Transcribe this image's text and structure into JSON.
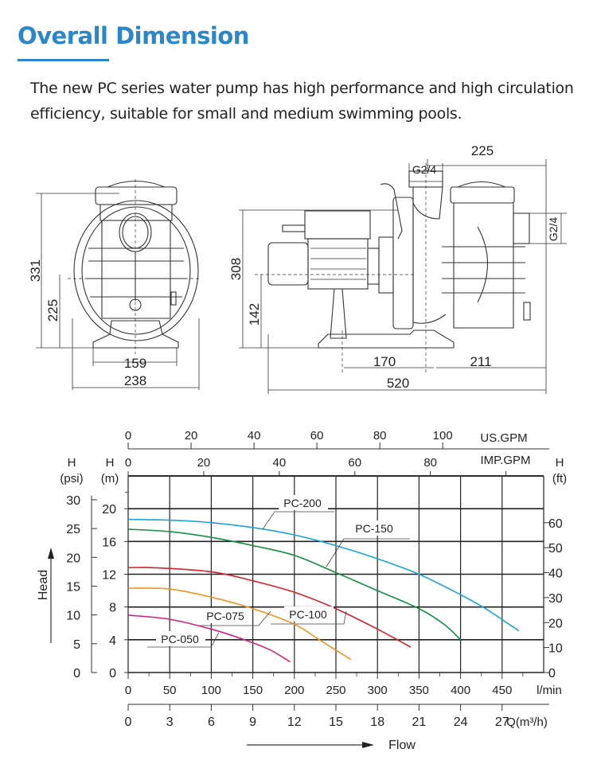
{
  "header": {
    "title": "Overall Dimension",
    "description": "The new PC series water pump has high performance and high circulation efficiency, suitable for small and medium swimming pools."
  },
  "drawing": {
    "front_view": {
      "height_total": "331",
      "height_center": "225",
      "base_inner": "159",
      "base_outer": "238"
    },
    "side_view": {
      "height_total": "308",
      "height_center": "142",
      "base_span": "170",
      "front_to_outlet": "211",
      "length_total": "520",
      "basket_width": "225",
      "outlet_thread": "G2/4",
      "inlet_thread": "G2/4"
    }
  },
  "chart_data": {
    "type": "line",
    "xlabel": "Flow",
    "ylabel": "Head",
    "x_unit": "l/min",
    "y_unit": "(m)",
    "xlim": [
      0,
      500
    ],
    "ylim": [
      0,
      24
    ],
    "grid": true,
    "x_ticks": [
      "0",
      "50",
      "100",
      "150",
      "200",
      "250",
      "300",
      "350",
      "400",
      "450"
    ],
    "y_ticks": [
      "0",
      "4",
      "8",
      "12",
      "16",
      "20"
    ],
    "secondary_axes": {
      "us_gpm": {
        "label": "US.GPM",
        "ticks": [
          "0",
          "20",
          "40",
          "60",
          "80",
          "100"
        ]
      },
      "imp_gpm": {
        "label": "IMP.GPM",
        "ticks": [
          "0",
          "20",
          "40",
          "60",
          "80"
        ]
      },
      "m3h": {
        "label": "Q(m³/h)",
        "ticks": [
          "0",
          "3",
          "6",
          "9",
          "12",
          "15",
          "18",
          "21",
          "24",
          "27"
        ]
      },
      "psi": {
        "label_h": "H",
        "label_unit": "(psi)",
        "ticks": [
          "0",
          "5",
          "10",
          "15",
          "20",
          "25",
          "30"
        ]
      },
      "ft": {
        "label_h": "H",
        "label_unit": "(ft)",
        "ticks": [
          "0",
          "10",
          "20",
          "30",
          "40",
          "50",
          "60"
        ]
      },
      "m_label_h": "H"
    },
    "series": [
      {
        "name": "PC-200",
        "color": "#1aa3dc",
        "points": [
          [
            0,
            18.7
          ],
          [
            50,
            18.6
          ],
          [
            100,
            18.3
          ],
          [
            150,
            17.7
          ],
          [
            200,
            16.8
          ],
          [
            250,
            15.5
          ],
          [
            300,
            13.9
          ],
          [
            350,
            12.0
          ],
          [
            400,
            9.5
          ],
          [
            430,
            7.8
          ],
          [
            470,
            5.1
          ]
        ]
      },
      {
        "name": "PC-150",
        "color": "#149045",
        "points": [
          [
            0,
            17.5
          ],
          [
            50,
            17.2
          ],
          [
            100,
            16.5
          ],
          [
            150,
            15.5
          ],
          [
            200,
            14.3
          ],
          [
            250,
            12.2
          ],
          [
            300,
            10.0
          ],
          [
            350,
            7.8
          ],
          [
            380,
            5.9
          ],
          [
            400,
            4.0
          ]
        ]
      },
      {
        "name": "PC-100",
        "color": "#d81e2c",
        "points": [
          [
            0,
            12.8
          ],
          [
            30,
            12.8
          ],
          [
            100,
            12.3
          ],
          [
            150,
            11.2
          ],
          [
            200,
            9.8
          ],
          [
            250,
            7.8
          ],
          [
            300,
            5.3
          ],
          [
            340,
            3.1
          ]
        ]
      },
      {
        "name": "PC-075",
        "color": "#f0941e",
        "points": [
          [
            0,
            10.3
          ],
          [
            50,
            10.2
          ],
          [
            100,
            9.2
          ],
          [
            150,
            7.8
          ],
          [
            200,
            5.9
          ],
          [
            230,
            4.0
          ],
          [
            268,
            1.6
          ]
        ]
      },
      {
        "name": "PC-050",
        "color": "#d6207c",
        "points": [
          [
            0,
            7.0
          ],
          [
            50,
            6.5
          ],
          [
            100,
            5.3
          ],
          [
            140,
            4.0
          ],
          [
            170,
            2.8
          ],
          [
            195,
            1.3
          ]
        ]
      }
    ]
  }
}
